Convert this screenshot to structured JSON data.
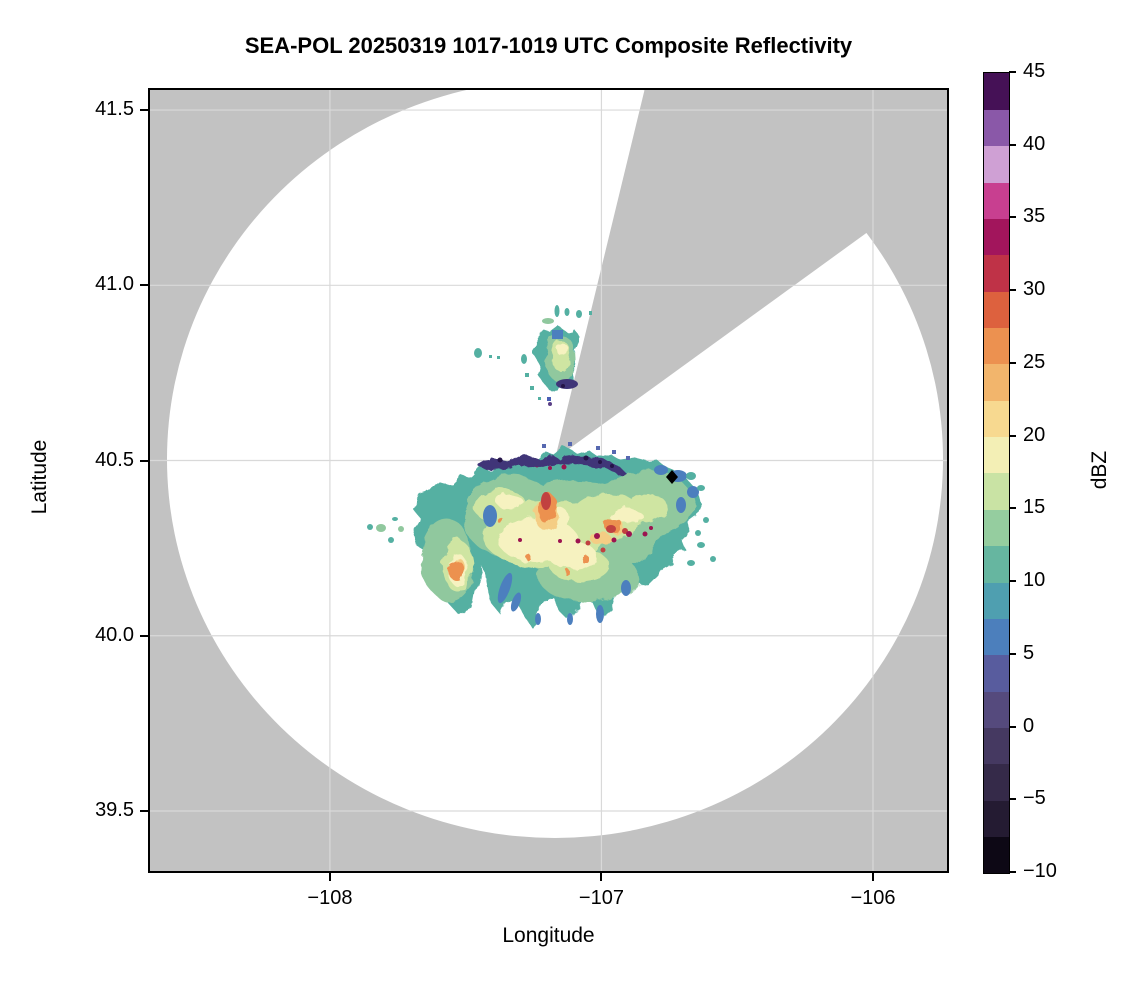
{
  "figure": {
    "title": "SEA-POL 20250319 1017-1019 UTC Composite Reflectivity",
    "background_color": "#ffffff"
  },
  "axes": {
    "xlabel": "Longitude",
    "ylabel": "Latitude",
    "xlim": [
      -108.67,
      -105.72
    ],
    "ylim": [
      39.323,
      41.563
    ],
    "x_ticks": [
      {
        "value": -108,
        "label": "−108"
      },
      {
        "value": -107,
        "label": "−107"
      },
      {
        "value": -106,
        "label": "−106"
      }
    ],
    "y_ticks": [
      {
        "value": 41.5,
        "label": "41.5"
      },
      {
        "value": 41.0,
        "label": "41.0"
      },
      {
        "value": 40.5,
        "label": "40.5"
      },
      {
        "value": 40.0,
        "label": "40.0"
      },
      {
        "value": 39.5,
        "label": "39.5"
      }
    ],
    "grid": true,
    "grid_color": "#d9d9d9",
    "outside_range_color": "#c2c2c2",
    "spine_color": "#000000"
  },
  "colorbar": {
    "label": "dBZ",
    "min": -10,
    "max": 45,
    "ticks": [
      {
        "value": 45,
        "label": "45"
      },
      {
        "value": 40,
        "label": "40"
      },
      {
        "value": 35,
        "label": "35"
      },
      {
        "value": 30,
        "label": "30"
      },
      {
        "value": 25,
        "label": "25"
      },
      {
        "value": 20,
        "label": "20"
      },
      {
        "value": 15,
        "label": "15"
      },
      {
        "value": 10,
        "label": "10"
      },
      {
        "value": 5,
        "label": "5"
      },
      {
        "value": 0,
        "label": "0"
      },
      {
        "value": -5,
        "label": "−5"
      },
      {
        "value": -10,
        "label": "−10"
      }
    ],
    "segments": [
      {
        "from": -10,
        "to": -7.5,
        "color": "#0d0815"
      },
      {
        "from": -7.5,
        "to": -5,
        "color": "#241b32"
      },
      {
        "from": -5,
        "to": -2.5,
        "color": "#352a49"
      },
      {
        "from": -2.5,
        "to": 0,
        "color": "#453961"
      },
      {
        "from": 0,
        "to": 2.5,
        "color": "#554a7d"
      },
      {
        "from": 2.5,
        "to": 5,
        "color": "#585c9e"
      },
      {
        "from": 5,
        "to": 7.5,
        "color": "#4c7fbc"
      },
      {
        "from": 7.5,
        "to": 10,
        "color": "#4f9fb0"
      },
      {
        "from": 10,
        "to": 12.5,
        "color": "#66b6a0"
      },
      {
        "from": 12.5,
        "to": 15,
        "color": "#95cd9f"
      },
      {
        "from": 15,
        "to": 17.5,
        "color": "#c9e3a4"
      },
      {
        "from": 17.5,
        "to": 20,
        "color": "#f3efb5"
      },
      {
        "from": 20,
        "to": 22.5,
        "color": "#f7d990"
      },
      {
        "from": 22.5,
        "to": 25,
        "color": "#f2b56c"
      },
      {
        "from": 25,
        "to": 27.5,
        "color": "#ec9150"
      },
      {
        "from": 27.5,
        "to": 30,
        "color": "#dd613e"
      },
      {
        "from": 30,
        "to": 32.5,
        "color": "#bf3247"
      },
      {
        "from": 32.5,
        "to": 35,
        "color": "#a2155c"
      },
      {
        "from": 35,
        "to": 37.5,
        "color": "#c83f90"
      },
      {
        "from": 37.5,
        "to": 40,
        "color": "#cfa0d4"
      },
      {
        "from": 40,
        "to": 42.5,
        "color": "#8a58a8"
      },
      {
        "from": 42.5,
        "to": 45,
        "color": "#451156"
      }
    ]
  },
  "chart_data": {
    "type": "heatmap",
    "subtype": "radar_composite_reflectivity_ppi",
    "title": "SEA-POL 20250319 1017-1019 UTC Composite Reflectivity",
    "xlabel": "Longitude",
    "ylabel": "Latitude",
    "units": "dBZ",
    "value_range": [
      -10,
      45
    ],
    "radar": {
      "center_lon": -107.17,
      "center_lat": 40.51,
      "range_km": 120,
      "range_ring_color": "#ffffff",
      "blocked_sector_azimuth_deg": [
        13,
        54
      ],
      "blocked_sector_color": "#c2c2c2"
    },
    "site_marker": {
      "shape": "black-diamond",
      "lon": -106.74,
      "lat": 40.46
    },
    "echo_regions": [
      {
        "name": "main_storm_band",
        "lon_extent": [
          -107.69,
          -106.64
        ],
        "lat_extent": [
          40.03,
          40.55
        ],
        "description": "Large irregular multi-lobed echo band with fractal edges and finger-like notches on its south side",
        "edge_dbz": "5-12 (blue/teal fringe)",
        "interior_dbz": "13-22 (green to pale yellow)",
        "cores_dbz": "25-33 (orange/red cores near -107.35,40.33 and -107.0,40.37)",
        "speck_max_dbz": "33-36 (maroon specks near -106.9,40.3)",
        "north_rim_dbz": "38-45 (dark navy/purple fringe along northern edge near lat 40.45)"
      },
      {
        "name": "isolated_cell_cluster_north",
        "lon_extent": [
          -107.3,
          -107.04
        ],
        "lat_extent": [
          40.66,
          40.96
        ],
        "description": "Small cell cluster clipped on its east side by the blocked wedge",
        "edge_dbz": "5-10 (teal)",
        "interior_dbz": "12-18 (green/yellow-green)",
        "notes": "blue ~5 dBZ spot on north side, dark 40+ dBZ speck on south edge, scattered specks west and north"
      },
      {
        "name": "scattered_specks_west",
        "lon_extent": [
          -107.87,
          -107.7
        ],
        "lat_extent": [
          40.26,
          40.35
        ],
        "description": "Tiny isolated echoes 8-15 dBZ"
      },
      {
        "name": "scattered_specks_east",
        "lon_extent": [
          -106.7,
          -106.55
        ],
        "lat_extent": [
          40.17,
          40.46
        ],
        "description": "Small teal specks 8-12 dBZ east of main band"
      }
    ],
    "colormap_name": "spectral dark-to-dark (ChaseSpectral-like), discrete steps",
    "legend_position": "right vertical colorbar"
  }
}
